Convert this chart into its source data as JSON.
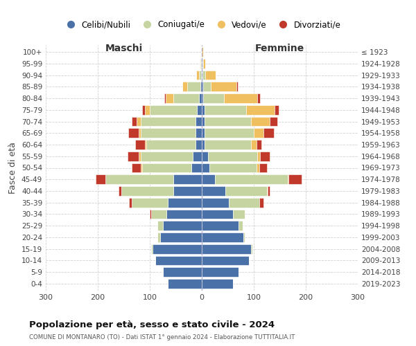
{
  "age_groups": [
    "0-4",
    "5-9",
    "10-14",
    "15-19",
    "20-24",
    "25-29",
    "30-34",
    "35-39",
    "40-44",
    "45-49",
    "50-54",
    "55-59",
    "60-64",
    "65-69",
    "70-74",
    "75-79",
    "80-84",
    "85-89",
    "90-94",
    "95-99",
    "100+"
  ],
  "birth_years": [
    "2019-2023",
    "2014-2018",
    "2009-2013",
    "2004-2008",
    "1999-2003",
    "1994-1998",
    "1989-1993",
    "1984-1988",
    "1979-1983",
    "1974-1978",
    "1969-1973",
    "1964-1968",
    "1959-1963",
    "1954-1958",
    "1949-1953",
    "1944-1948",
    "1939-1943",
    "1934-1938",
    "1929-1933",
    "1924-1928",
    "≤ 1923"
  ],
  "colors": {
    "celibi": "#4a72a8",
    "coniugati": "#c5d4a0",
    "vedovi": "#f0c060",
    "divorziati": "#c0392b"
  },
  "males": {
    "celibi": [
      65,
      75,
      90,
      95,
      80,
      75,
      68,
      65,
      55,
      55,
      20,
      18,
      12,
      12,
      12,
      10,
      5,
      3,
      1,
      1,
      0
    ],
    "coniugati": [
      0,
      0,
      0,
      3,
      5,
      10,
      30,
      70,
      100,
      130,
      95,
      100,
      95,
      105,
      105,
      90,
      50,
      25,
      5,
      2,
      0
    ],
    "vedovi": [
      0,
      0,
      0,
      0,
      0,
      0,
      0,
      0,
      0,
      1,
      2,
      3,
      3,
      5,
      8,
      10,
      15,
      10,
      5,
      1,
      0
    ],
    "divorziati": [
      0,
      0,
      0,
      0,
      0,
      0,
      2,
      5,
      5,
      18,
      18,
      22,
      18,
      20,
      10,
      5,
      2,
      0,
      0,
      0,
      0
    ]
  },
  "females": {
    "celibi": [
      60,
      70,
      90,
      95,
      80,
      70,
      60,
      52,
      45,
      25,
      15,
      12,
      5,
      5,
      5,
      5,
      2,
      2,
      1,
      1,
      0
    ],
    "coniugati": [
      0,
      0,
      0,
      2,
      3,
      8,
      22,
      58,
      80,
      140,
      90,
      95,
      90,
      95,
      90,
      80,
      40,
      15,
      5,
      1,
      0
    ],
    "vedovi": [
      0,
      0,
      0,
      0,
      0,
      0,
      0,
      0,
      1,
      2,
      5,
      5,
      10,
      18,
      35,
      55,
      65,
      50,
      20,
      5,
      2
    ],
    "divorziati": [
      0,
      0,
      0,
      0,
      0,
      0,
      0,
      8,
      5,
      25,
      15,
      18,
      10,
      20,
      15,
      8,
      5,
      2,
      0,
      0,
      0
    ]
  },
  "title": "Popolazione per età, sesso e stato civile - 2024",
  "subtitle": "COMUNE DI MONTANARO (TO) - Dati ISTAT 1° gennaio 2024 - Elaborazione TUTTITALIA.IT",
  "ylabel_left": "Fasce di età",
  "xlabel_left": "Maschi",
  "xlabel_right": "Femmine",
  "xlim": 300,
  "legend_labels": [
    "Celibi/Nubili",
    "Coniugati/e",
    "Vedovi/e",
    "Divorziati/e"
  ],
  "bg_color": "#ffffff",
  "grid_color": "#cccccc"
}
